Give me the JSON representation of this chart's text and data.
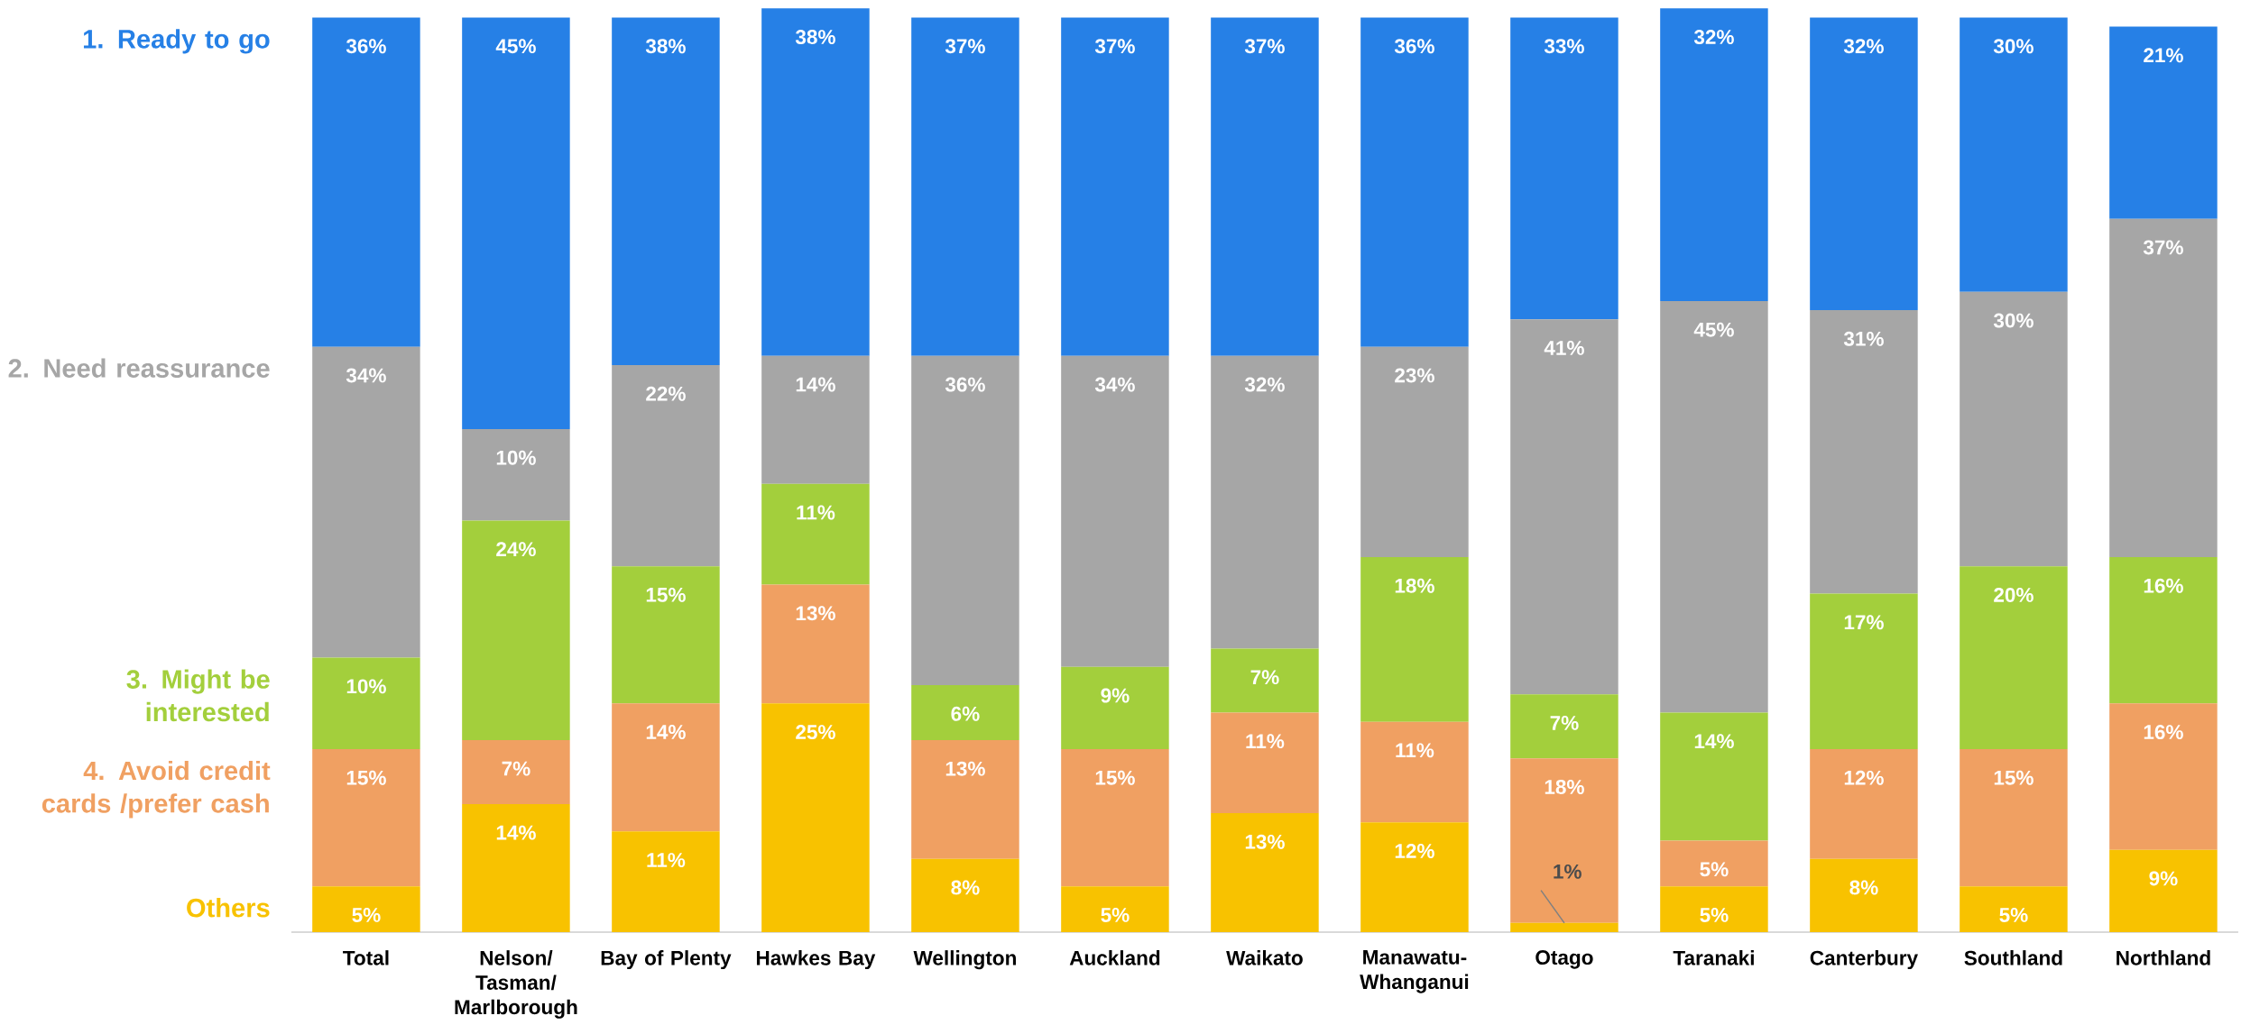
{
  "chart_data": {
    "type": "bar",
    "stacked": true,
    "legend": "left",
    "categories": [
      "Total",
      "Nelson/ Tasman/ Marlborough",
      "Bay of Plenty",
      "Hawkes Bay",
      "Wellington",
      "Auckland",
      "Waikato",
      "Manawatu- Whanganui",
      "Otago",
      "Taranaki",
      "Canterbury",
      "Southland",
      "Northland"
    ],
    "series": [
      {
        "name": "Others",
        "color": "#f8c200",
        "values": [
          5,
          14,
          11,
          25,
          8,
          5,
          13,
          12,
          1,
          5,
          8,
          5,
          9
        ],
        "value_labels": [
          "5%",
          "14%",
          "11%",
          "25%",
          "8%",
          "5%",
          "13%",
          "12%",
          "1%",
          "5%",
          "8%",
          "5%",
          "9%"
        ]
      },
      {
        "name": "4. Avoid credit cards /prefer cash",
        "color": "#f0a062",
        "values": [
          15,
          7,
          14,
          13,
          13,
          15,
          11,
          11,
          18,
          5,
          12,
          15,
          16
        ],
        "value_labels": [
          "15%",
          "7%",
          "14%",
          "13%",
          "13%",
          "15%",
          "11%",
          "11%",
          "18%",
          "5%",
          "12%",
          "15%",
          "16%"
        ]
      },
      {
        "name": "3. Might be interested",
        "color": "#a3cf3c",
        "values": [
          10,
          24,
          15,
          11,
          6,
          9,
          7,
          18,
          7,
          14,
          17,
          20,
          16
        ],
        "value_labels": [
          "10%",
          "24%",
          "15%",
          "11%",
          "6%",
          "9%",
          "7%",
          "18%",
          "7%",
          "14%",
          "17%",
          "20%",
          "16%"
        ]
      },
      {
        "name": "2. Need reassurance",
        "color": "#a6a6a6",
        "values": [
          34,
          10,
          22,
          14,
          36,
          34,
          32,
          23,
          41,
          45,
          31,
          30,
          37
        ],
        "value_labels": [
          "34%",
          "10%",
          "22%",
          "14%",
          "36%",
          "34%",
          "32%",
          "23%",
          "41%",
          "45%",
          "31%",
          "30%",
          "37%"
        ]
      },
      {
        "name": "1. Ready to go",
        "color": "#2680e6",
        "values": [
          36,
          45,
          38,
          38,
          37,
          37,
          37,
          36,
          33,
          32,
          32,
          30,
          21
        ],
        "value_labels": [
          "36%",
          "45%",
          "38%",
          "38%",
          "37%",
          "37%",
          "37%",
          "36%",
          "33%",
          "32%",
          "32%",
          "30%",
          "21%"
        ]
      }
    ]
  }
}
